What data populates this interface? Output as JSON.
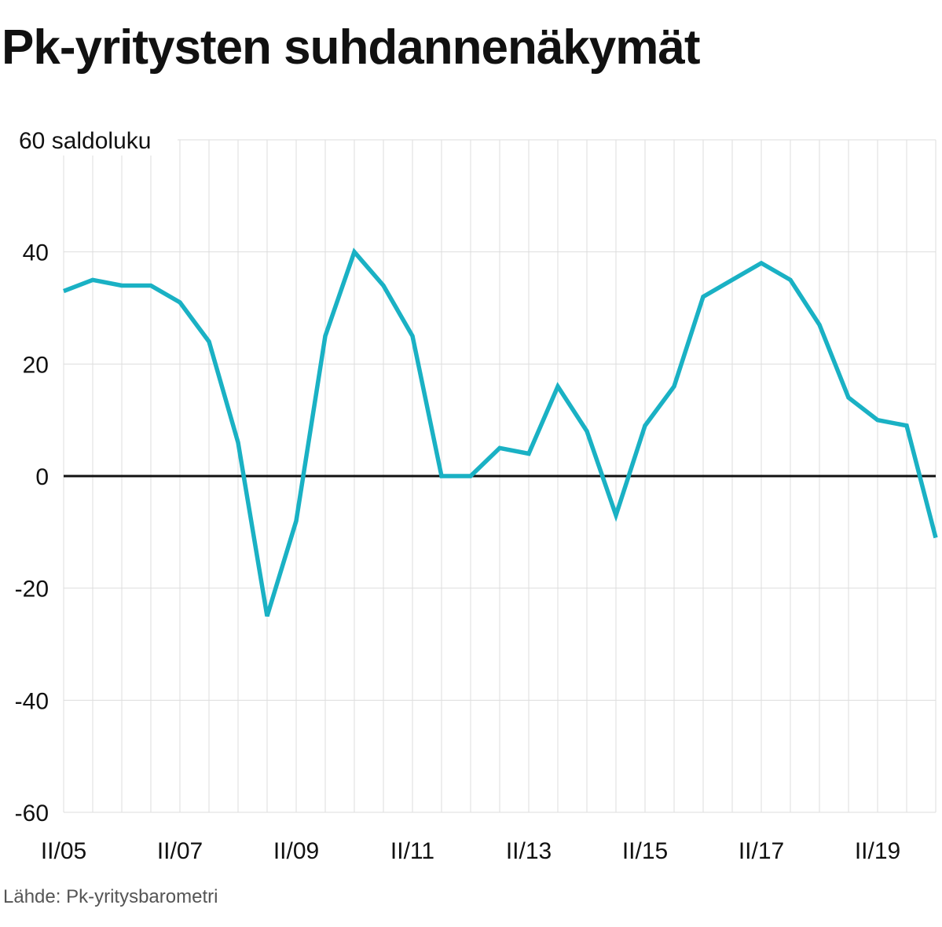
{
  "title": "Pk-yritysten suhdannenäkymät",
  "source": "Lähde: Pk-yritysbarometri",
  "colors": {
    "line": "#1ab1c4",
    "grid": "#dddddd",
    "zero": "#111111"
  },
  "chart_data": {
    "type": "line",
    "title": "Pk-yritysten suhdannenäkymät",
    "ylabel": "saldoluku",
    "ylim": [
      -60,
      60
    ],
    "yticks": [
      -60,
      -40,
      -20,
      0,
      20,
      40,
      60
    ],
    "grid": true,
    "x_tick_labels": [
      "II/05",
      "II/07",
      "II/09",
      "II/11",
      "II/13",
      "II/15",
      "II/17",
      "II/19"
    ],
    "x_tick_every": 4,
    "values": [
      33,
      35,
      34,
      34,
      31,
      24,
      6,
      -25,
      -8,
      25,
      40,
      34,
      25,
      0,
      0,
      5,
      4,
      16,
      8,
      -7,
      9,
      16,
      32,
      35,
      38,
      35,
      27,
      14,
      10,
      9,
      -11
    ]
  }
}
